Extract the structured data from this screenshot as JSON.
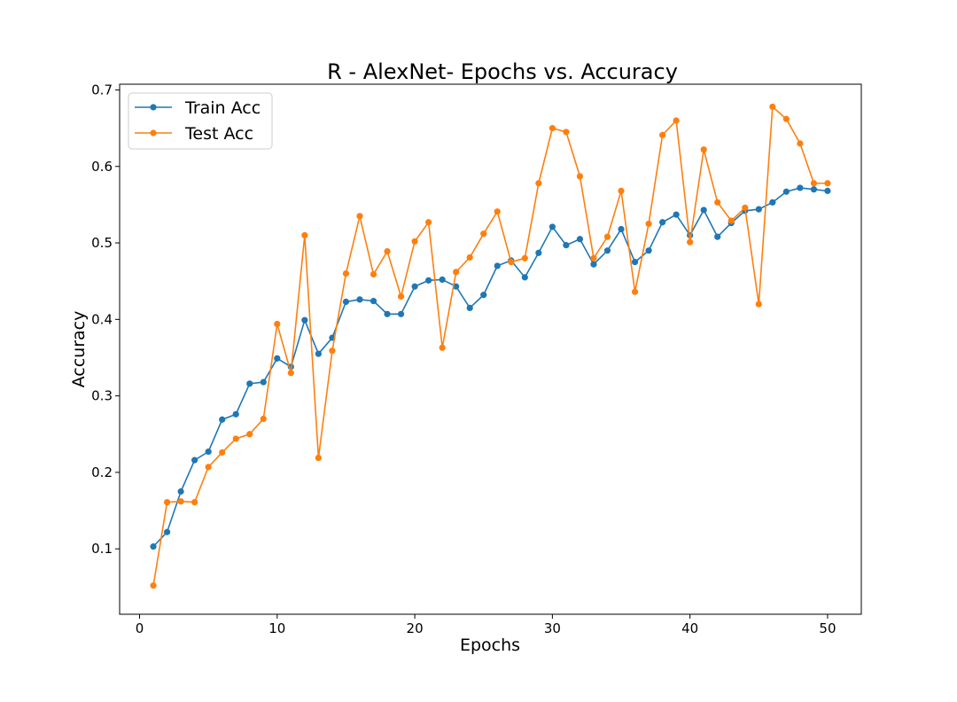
{
  "chart_data": {
    "type": "line",
    "title": "R - AlexNet- Epochs vs. Accuracy",
    "xlabel": "Epochs",
    "ylabel": "Accuracy",
    "xlim": [
      -1.45,
      52.45
    ],
    "ylim": [
      0.0145,
      0.7075
    ],
    "xticks": [
      0,
      10,
      20,
      30,
      40,
      50
    ],
    "yticks": [
      0.1,
      0.2,
      0.3,
      0.4,
      0.5,
      0.6,
      0.7
    ],
    "grid": false,
    "legend_position": "upper-left",
    "x": [
      1,
      2,
      3,
      4,
      5,
      6,
      7,
      8,
      9,
      10,
      11,
      12,
      13,
      14,
      15,
      16,
      17,
      18,
      19,
      20,
      21,
      22,
      23,
      24,
      25,
      26,
      27,
      28,
      29,
      30,
      31,
      32,
      33,
      34,
      35,
      36,
      37,
      38,
      39,
      40,
      41,
      42,
      43,
      44,
      45,
      46,
      47,
      48,
      49,
      50
    ],
    "series": [
      {
        "name": "Train Acc",
        "color": "#1f77b4",
        "values": [
          0.103,
          0.122,
          0.175,
          0.216,
          0.227,
          0.269,
          0.276,
          0.316,
          0.318,
          0.349,
          0.338,
          0.399,
          0.355,
          0.376,
          0.423,
          0.426,
          0.424,
          0.407,
          0.407,
          0.443,
          0.451,
          0.452,
          0.443,
          0.415,
          0.432,
          0.47,
          0.477,
          0.455,
          0.487,
          0.521,
          0.497,
          0.505,
          0.472,
          0.49,
          0.518,
          0.475,
          0.49,
          0.527,
          0.537,
          0.51,
          0.543,
          0.508,
          0.526,
          0.542,
          0.544,
          0.553,
          0.567,
          0.572,
          0.57,
          0.568
        ]
      },
      {
        "name": "Test Acc",
        "color": "#ff7f0e",
        "values": [
          0.052,
          0.161,
          0.162,
          0.161,
          0.207,
          0.226,
          0.244,
          0.25,
          0.27,
          0.394,
          0.33,
          0.51,
          0.219,
          0.359,
          0.46,
          0.535,
          0.459,
          0.489,
          0.43,
          0.502,
          0.527,
          0.363,
          0.462,
          0.481,
          0.512,
          0.541,
          0.475,
          0.48,
          0.578,
          0.65,
          0.645,
          0.587,
          0.48,
          0.508,
          0.568,
          0.436,
          0.525,
          0.641,
          0.66,
          0.501,
          0.622,
          0.553,
          0.529,
          0.546,
          0.42,
          0.678,
          0.662,
          0.63,
          0.578,
          0.578
        ]
      }
    ]
  }
}
